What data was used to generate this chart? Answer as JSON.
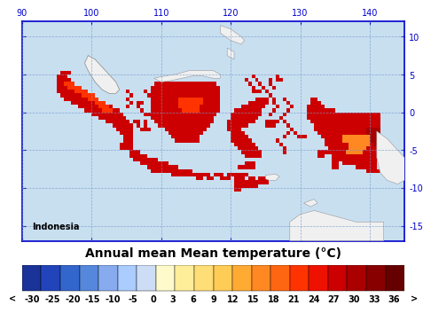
{
  "title": "Annual mean Mean temperature (°C)",
  "country_label": "Indonesia",
  "xlim": [
    90,
    145
  ],
  "ylim": [
    -17,
    12
  ],
  "xticks": [
    90,
    100,
    110,
    120,
    130,
    140
  ],
  "yticks": [
    -15,
    -10,
    -5,
    0,
    5,
    10
  ],
  "xlabel_color": "#0000cc",
  "background_color": "#c8dff0",
  "grid_color": "#7799cc",
  "sea_color": "#c8dff0",
  "land_bg_color": "#f0f0f0",
  "border_color": "#999999",
  "colorbar_labels": [
    "<",
    "-30",
    "-25",
    "-20",
    "-15",
    "-10",
    "-5",
    "0",
    "3",
    "6",
    "9",
    "12",
    "15",
    "18",
    "21",
    "24",
    "27",
    "30",
    "33",
    "36",
    ">"
  ],
  "colorbar_colors": [
    "#1a3399",
    "#2244bb",
    "#3366cc",
    "#5588dd",
    "#88aaee",
    "#aaccff",
    "#ccddf5",
    "#fffacc",
    "#ffee99",
    "#ffdd77",
    "#ffcc55",
    "#ffaa33",
    "#ff8822",
    "#ff6611",
    "#ff3300",
    "#ee1100",
    "#cc0000",
    "#aa0000",
    "#880000",
    "#660000"
  ],
  "indonesia_warm_color": "#cc1100",
  "indonesia_hot_color": "#dd1100",
  "indonesia_highland_color": "#990000",
  "indonesia_veryhot_color": "#ee2200",
  "papua_warm_color": "#dd8866",
  "title_fontsize": 10,
  "tick_fontsize": 7,
  "cb_label_fontsize": 7
}
